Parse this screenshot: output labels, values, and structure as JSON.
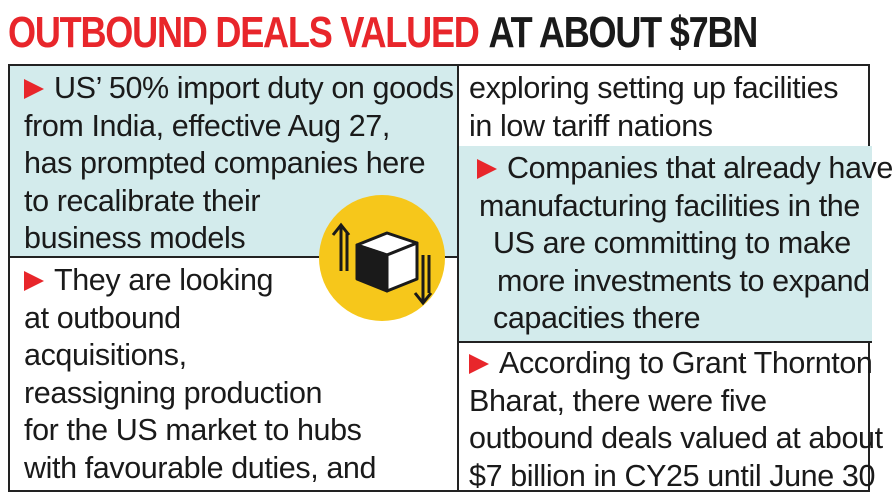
{
  "headline": {
    "red_part": "OUTBOUND DEALS VALUED",
    "black_part": "AT ABOUT $7BN"
  },
  "left_column": {
    "point1": [
      "US’ 50% import duty on goods",
      "from India, effective Aug 27,",
      "has prompted companies here",
      "to recalibrate their",
      "business models"
    ],
    "point2": [
      "They are looking",
      "at outbound",
      "acquisitions,",
      "reassigning production",
      "for the US market to hubs",
      "with favourable duties, and"
    ]
  },
  "right_column": {
    "point2_continued": [
      "exploring setting up facilities",
      "in low tariff nations"
    ],
    "point3": [
      "Companies that already have",
      "manufacturing facilities in the",
      "US are committing to make",
      "more investments to expand",
      "capacities there"
    ],
    "point4": [
      "According to Grant Thornton",
      "Bharat, there were five",
      "outbound deals valued at about",
      "$7 billion in CY25 until June 30"
    ]
  },
  "colors": {
    "accent_red": "#e8262b",
    "tint_teal": "#d3ebec",
    "emblem_yellow": "#f6c71b"
  },
  "emblem_icon": "box-with-up-down-arrows-icon"
}
